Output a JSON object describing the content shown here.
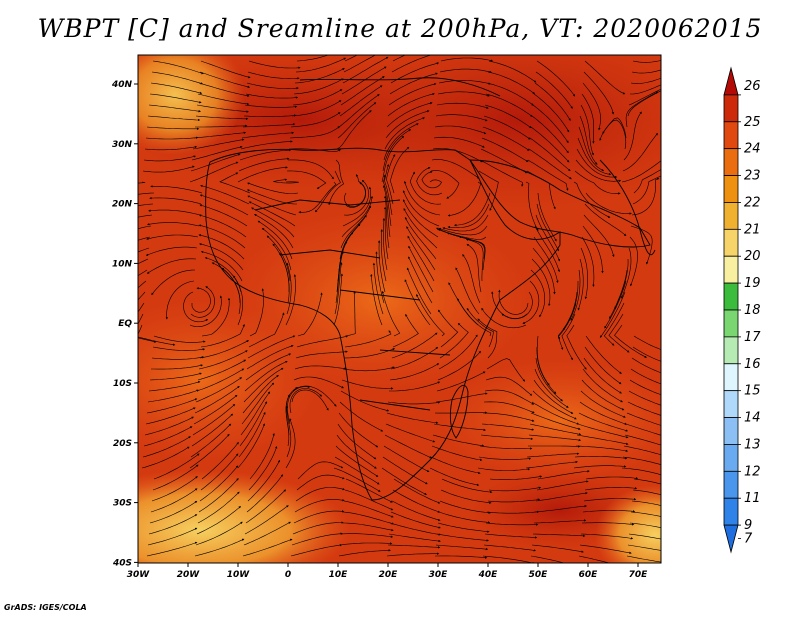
{
  "title": "WBPT [C] and Sreamline at 200hPa, VT: 2020062015",
  "credit": "GrADS: IGES/COLA",
  "map": {
    "lon_range": [
      -30,
      75
    ],
    "lat_range": [
      -40,
      45
    ],
    "lon_ticks": [
      "30W",
      "20W",
      "10W",
      "0",
      "10E",
      "20E",
      "30E",
      "40E",
      "50E",
      "60E",
      "70E"
    ],
    "lat_ticks": [
      "40N",
      "30N",
      "20N",
      "10N",
      "EQ",
      "10S",
      "20S",
      "30S",
      "40S"
    ],
    "background_color": "#d43a10"
  },
  "colorbar": {
    "levels": [
      "7",
      "9",
      "11",
      "12",
      "13",
      "14",
      "15",
      "16",
      "17",
      "18",
      "19",
      "20",
      "21",
      "22",
      "23",
      "24",
      "25",
      "26"
    ],
    "colors": [
      "#1e6ee0",
      "#2f82e8",
      "#4a96ec",
      "#6aaaf0",
      "#8cc0f4",
      "#b0d8fa",
      "#e0f6ff",
      "#b6ecb4",
      "#7ad670",
      "#3cbc3c",
      "#f8f0a0",
      "#f6d46a",
      "#f0b030",
      "#ee9010",
      "#ea6e10",
      "#e04a10",
      "#cc2a0a",
      "#b40a06"
    ]
  }
}
